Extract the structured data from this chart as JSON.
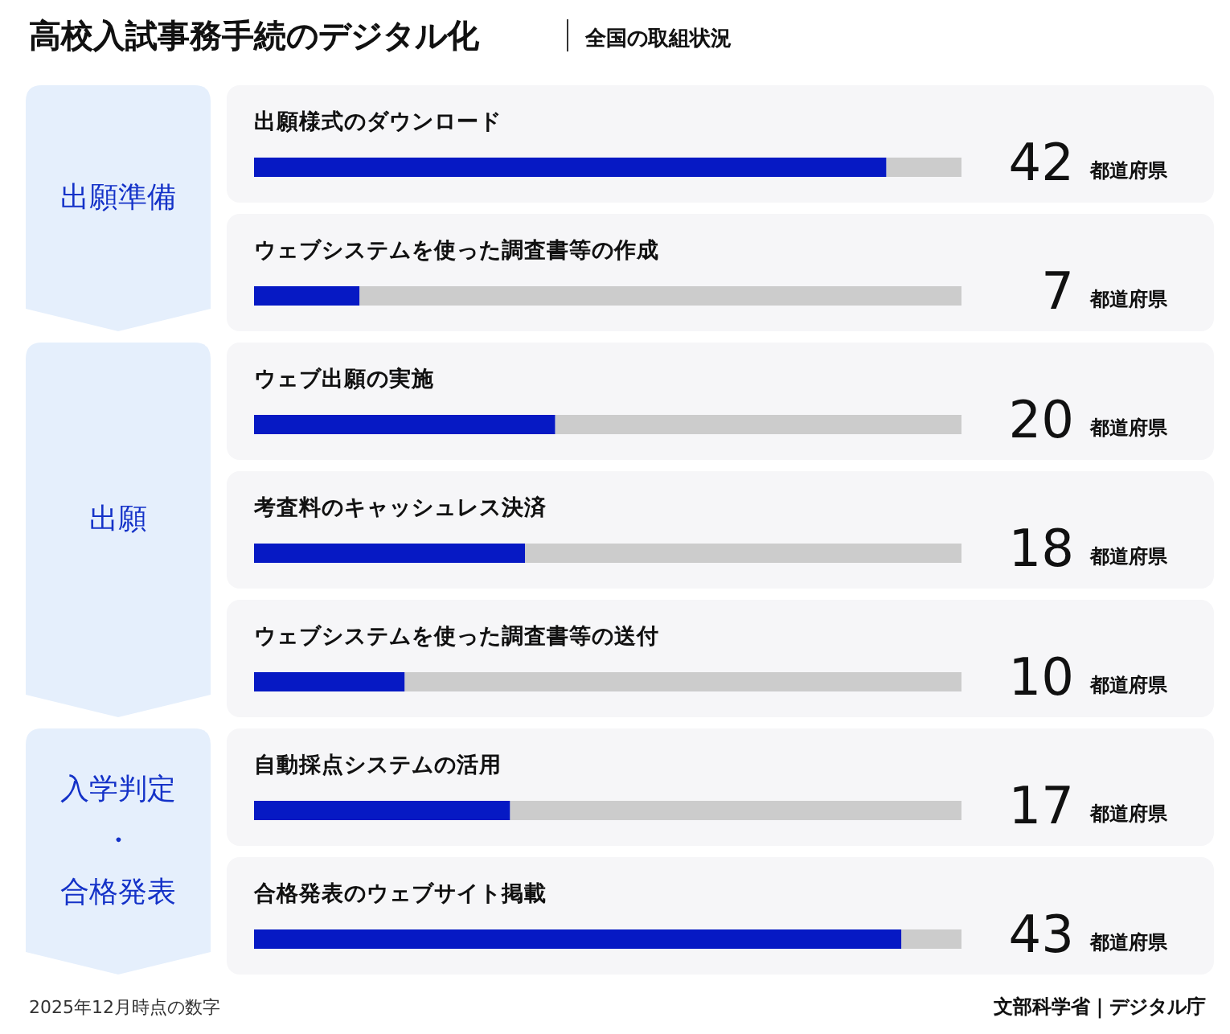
{
  "chart_data": {
    "type": "bar",
    "orientation": "horizontal",
    "title": "高校入試事務手続のデジタル化",
    "subtitle": "全国の取組状況",
    "categories": [
      "出願様式のダウンロード",
      "ウェブシステムを使った調査書等の作成",
      "ウェブ出願の実施",
      "考査料のキャッシュレス決済",
      "ウェブシステムを使った調査書等の送付",
      "自動採点システムの活用",
      "合格発表のウェブサイト掲載"
    ],
    "values": [
      42,
      7,
      20,
      18,
      10,
      17,
      43
    ],
    "color": "#0619c4",
    "xlim": [
      0,
      47
    ],
    "tick_labels": false,
    "value_labels": [
      "42 都道府県",
      "7 都道府県",
      "20 都道府県",
      "18 都道府県",
      "10 都道府県",
      "17 都道府県",
      "43 都道府県"
    ],
    "annotations": [
      "出願準備",
      "出願",
      "入学判定・合格発表",
      "2025年12月時点の数字",
      "文部科学省｜デジタル庁"
    ]
  }
}
